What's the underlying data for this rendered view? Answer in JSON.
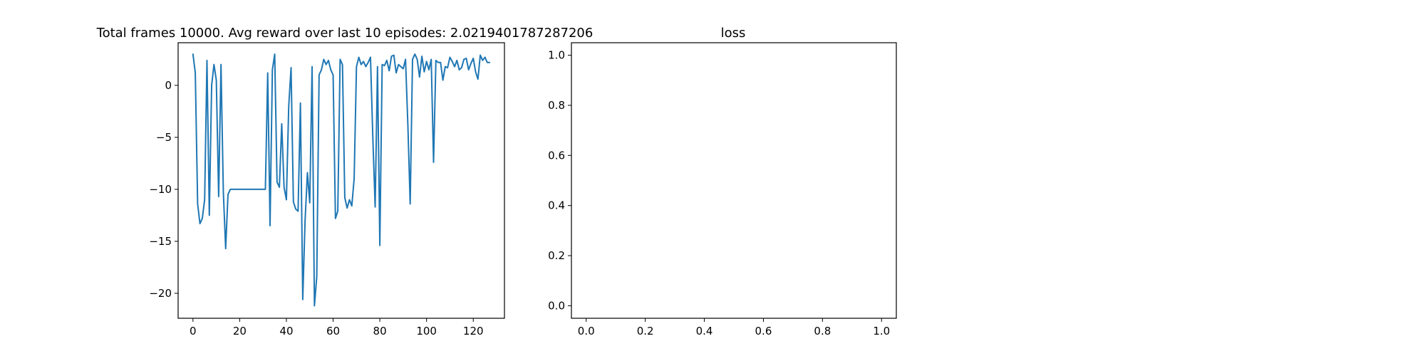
{
  "figure": {
    "line_color": "#1f77b4",
    "axis_color": "#000000",
    "background": "#ffffff"
  },
  "chart_data": [
    {
      "type": "line",
      "title": "Total frames 10000. Avg reward over last 10 episodes: 2.0219401787287206",
      "xlabel": "",
      "ylabel": "",
      "grid": false,
      "xlim": [
        -6.35,
        133.35
      ],
      "ylim": [
        -22.4,
        4.1
      ],
      "xticks": [
        0,
        20,
        40,
        60,
        80,
        100,
        120
      ],
      "xtick_labels": [
        "0",
        "20",
        "40",
        "60",
        "80",
        "100",
        "120"
      ],
      "yticks": [
        -20,
        -15,
        -10,
        -5,
        0
      ],
      "ytick_labels": [
        "−20",
        "−15",
        "−10",
        "−5",
        "0"
      ],
      "series": [
        {
          "color": "#1f77b4",
          "x": [
            0,
            1,
            2,
            3,
            4,
            5,
            6,
            7,
            8,
            9,
            10,
            11,
            12,
            13,
            14,
            15,
            16,
            17,
            18,
            19,
            20,
            21,
            22,
            23,
            24,
            25,
            26,
            27,
            28,
            29,
            30,
            31,
            32,
            33,
            34,
            35,
            36,
            37,
            38,
            39,
            40,
            41,
            42,
            43,
            44,
            45,
            46,
            47,
            48,
            49,
            50,
            51,
            52,
            53,
            54,
            55,
            56,
            57,
            58,
            59,
            60,
            61,
            62,
            63,
            64,
            65,
            66,
            67,
            68,
            69,
            70,
            71,
            72,
            73,
            74,
            75,
            76,
            77,
            78,
            79,
            80,
            81,
            82,
            83,
            84,
            85,
            86,
            87,
            88,
            89,
            90,
            91,
            92,
            93,
            94,
            95,
            96,
            97,
            98,
            99,
            100,
            101,
            102,
            103,
            104,
            105,
            106,
            107,
            108,
            109,
            110,
            111,
            112,
            113,
            114,
            115,
            116,
            117,
            118,
            119,
            120,
            121,
            122,
            123,
            124,
            125,
            126,
            127
          ],
          "y": [
            3.0,
            1.2,
            -11.4,
            -13.3,
            -12.8,
            -11.0,
            2.4,
            -12.5,
            0.0,
            2.0,
            0.5,
            -10.7,
            2.0,
            -10.2,
            -15.7,
            -10.5,
            -10.0,
            -10.0,
            -10.0,
            -10.0,
            -10.0,
            -10.0,
            -10.0,
            -10.0,
            -10.0,
            -10.0,
            -10.0,
            -10.0,
            -10.0,
            -10.0,
            -10.0,
            -10.0,
            1.2,
            -13.5,
            1.5,
            3.0,
            -9.3,
            -9.8,
            -3.7,
            -9.8,
            -11.0,
            -2.0,
            1.7,
            -11.2,
            -11.9,
            -12.1,
            -1.7,
            -20.6,
            -13.0,
            -8.4,
            -11.3,
            1.8,
            -21.2,
            -18.4,
            1.0,
            1.5,
            2.5,
            2.0,
            2.4,
            1.5,
            1.0,
            -12.8,
            -12.1,
            2.5,
            2.0,
            -10.8,
            -11.8,
            -11.0,
            -11.6,
            -9.0,
            1.8,
            2.7,
            2.0,
            2.3,
            1.8,
            2.2,
            2.7,
            -5.0,
            -11.7,
            1.8,
            -15.4,
            2.0,
            1.9,
            2.4,
            1.4,
            2.8,
            2.9,
            1.2,
            2.0,
            1.8,
            1.6,
            2.5,
            -3.8,
            -11.4,
            2.5,
            3.0,
            2.5,
            0.8,
            2.8,
            1.3,
            2.3,
            1.5,
            2.5,
            -7.4,
            2.4,
            2.2,
            2.2,
            0.5,
            1.8,
            1.7,
            2.7,
            2.3,
            1.8,
            2.4,
            1.5,
            1.7,
            2.5,
            2.6,
            1.5,
            2.1,
            2.6,
            1.3,
            0.6,
            2.9,
            2.4,
            2.7,
            2.2,
            2.2
          ]
        }
      ]
    },
    {
      "type": "line",
      "title": "loss",
      "xlabel": "",
      "ylabel": "",
      "grid": false,
      "xlim": [
        -0.05,
        1.05
      ],
      "ylim": [
        -0.05,
        1.05
      ],
      "xticks": [
        0.0,
        0.2,
        0.4,
        0.6,
        0.8,
        1.0
      ],
      "xtick_labels": [
        "0.0",
        "0.2",
        "0.4",
        "0.6",
        "0.8",
        "1.0"
      ],
      "yticks": [
        0.0,
        0.2,
        0.4,
        0.6,
        0.8,
        1.0
      ],
      "ytick_labels": [
        "0.0",
        "0.2",
        "0.4",
        "0.6",
        "0.8",
        "1.0"
      ],
      "series": []
    }
  ]
}
